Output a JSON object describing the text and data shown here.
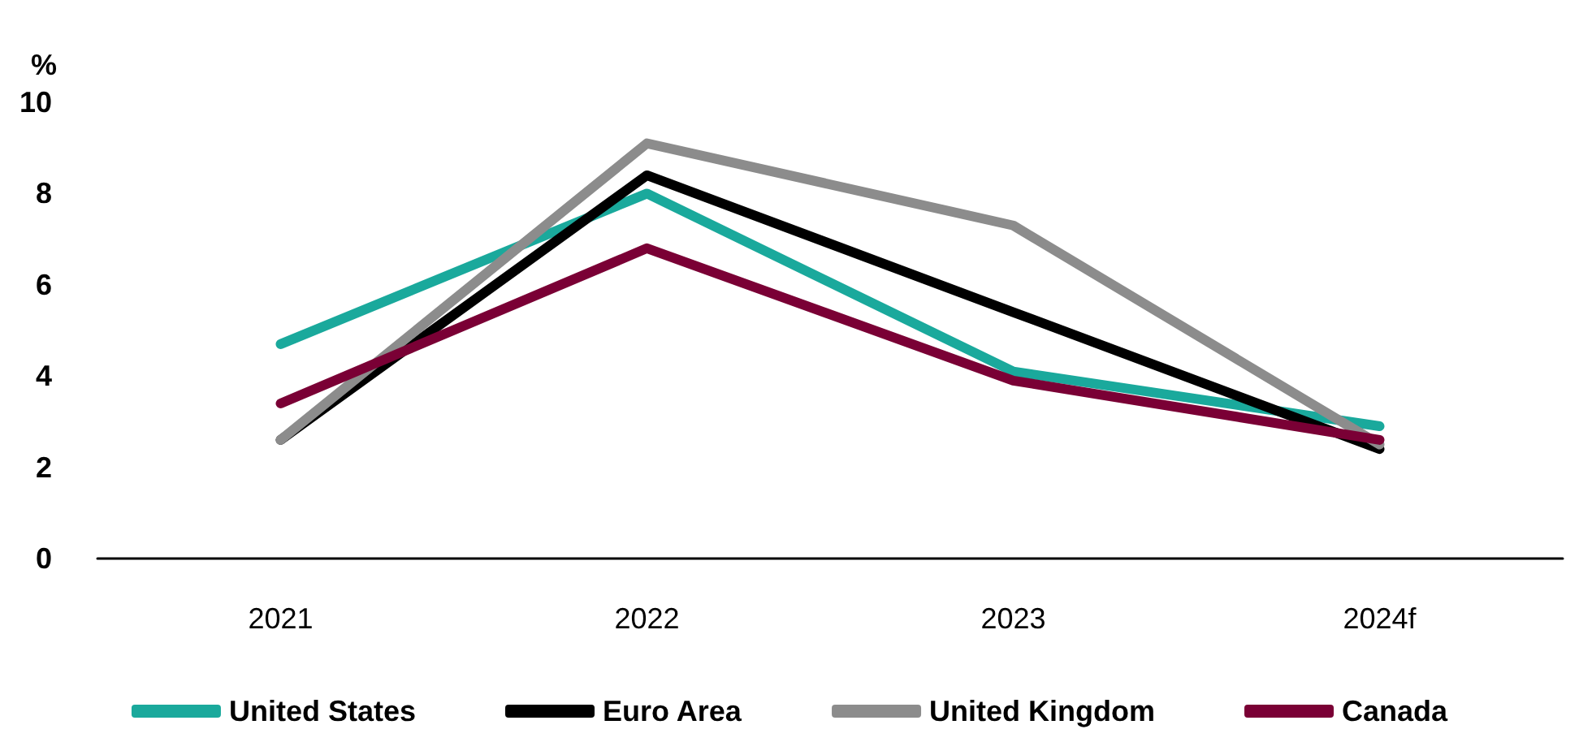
{
  "chart_data": {
    "type": "line",
    "ylabel": "%",
    "categories": [
      "2021",
      "2022",
      "2023",
      "2024f"
    ],
    "series": [
      {
        "name": "United States",
        "color": "#1aa99c",
        "values": [
          4.7,
          8.0,
          4.1,
          2.9
        ]
      },
      {
        "name": "Euro Area",
        "color": "#000000",
        "values": [
          2.6,
          8.4,
          5.4,
          2.4
        ]
      },
      {
        "name": "United Kingdom",
        "color": "#8c8c8c",
        "values": [
          2.6,
          9.1,
          7.3,
          2.5
        ]
      },
      {
        "name": "Canada",
        "color": "#7a0035",
        "values": [
          3.4,
          6.8,
          3.9,
          2.6
        ]
      }
    ],
    "ylim": [
      0,
      10
    ],
    "yticks": [
      0,
      2,
      4,
      6,
      8,
      10
    ],
    "grid": false,
    "legend": "bottom",
    "marker": "none",
    "line_style": "solid"
  }
}
